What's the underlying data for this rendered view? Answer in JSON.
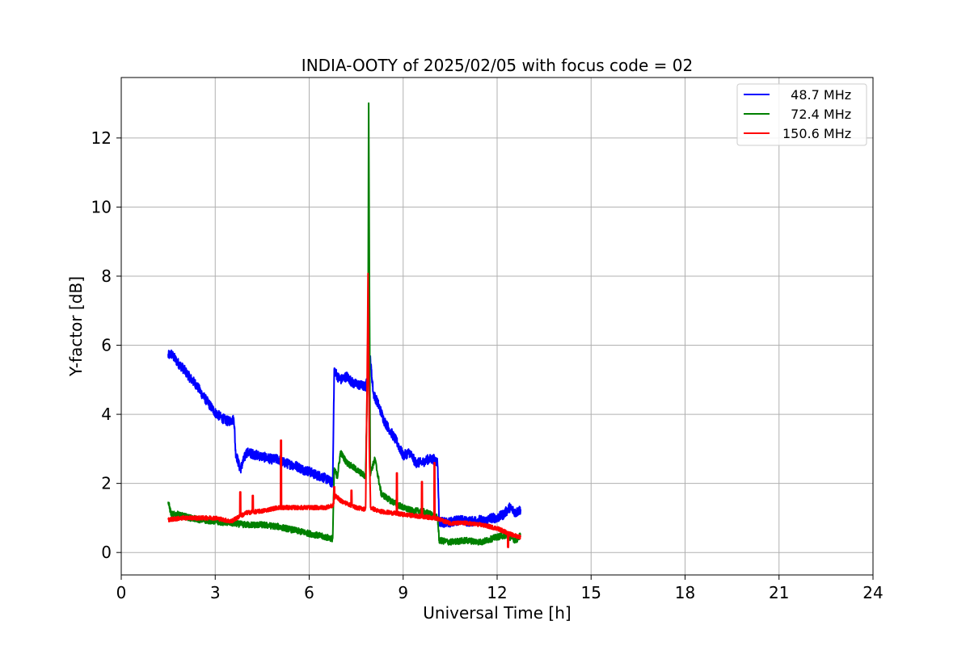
{
  "chart_data": {
    "type": "line",
    "title": "INDIA-OOTY of 2025/02/05 with focus code = 02",
    "xlabel": "Universal Time [h]",
    "ylabel": "Y-factor [dB]",
    "xlim": [
      0,
      24
    ],
    "ylim": [
      -0.65,
      13.75
    ],
    "xticks": [
      0,
      3,
      6,
      9,
      12,
      15,
      18,
      21,
      24
    ],
    "yticks": [
      0,
      2,
      4,
      6,
      8,
      10,
      12
    ],
    "grid": true,
    "legend_position": "top-right",
    "series": [
      {
        "name": "  48.7 MHz",
        "color": "#0000ff",
        "noise": 0.14,
        "points": [
          [
            1.5,
            5.7
          ],
          [
            1.6,
            5.75
          ],
          [
            1.8,
            5.5
          ],
          [
            2.0,
            5.3
          ],
          [
            2.2,
            5.05
          ],
          [
            2.4,
            4.85
          ],
          [
            2.6,
            4.55
          ],
          [
            2.8,
            4.3
          ],
          [
            3.0,
            4.05
          ],
          [
            3.2,
            3.9
          ],
          [
            3.4,
            3.8
          ],
          [
            3.6,
            3.85
          ],
          [
            3.62,
            3.5
          ],
          [
            3.65,
            2.9
          ],
          [
            3.8,
            2.4
          ],
          [
            4.0,
            2.9
          ],
          [
            4.2,
            2.85
          ],
          [
            4.4,
            2.8
          ],
          [
            4.6,
            2.75
          ],
          [
            4.8,
            2.7
          ],
          [
            5.0,
            2.7
          ],
          [
            5.2,
            2.6
          ],
          [
            5.4,
            2.55
          ],
          [
            5.6,
            2.5
          ],
          [
            5.8,
            2.4
          ],
          [
            6.0,
            2.35
          ],
          [
            6.2,
            2.25
          ],
          [
            6.4,
            2.2
          ],
          [
            6.6,
            2.1
          ],
          [
            6.75,
            2.0
          ],
          [
            6.8,
            5.3
          ],
          [
            6.9,
            5.1
          ],
          [
            7.0,
            5.0
          ],
          [
            7.2,
            5.1
          ],
          [
            7.4,
            4.9
          ],
          [
            7.6,
            4.85
          ],
          [
            7.8,
            4.8
          ],
          [
            7.85,
            5.0
          ],
          [
            7.95,
            5.6
          ],
          [
            8.05,
            4.6
          ],
          [
            8.2,
            4.3
          ],
          [
            8.4,
            3.8
          ],
          [
            8.6,
            3.5
          ],
          [
            8.8,
            3.2
          ],
          [
            9.0,
            2.8
          ],
          [
            9.2,
            2.9
          ],
          [
            9.4,
            2.6
          ],
          [
            9.6,
            2.6
          ],
          [
            9.8,
            2.7
          ],
          [
            10.0,
            2.7
          ],
          [
            10.1,
            2.6
          ],
          [
            10.15,
            0.9
          ],
          [
            10.4,
            0.85
          ],
          [
            10.6,
            0.9
          ],
          [
            10.8,
            0.95
          ],
          [
            11.0,
            0.9
          ],
          [
            11.2,
            0.9
          ],
          [
            11.4,
            0.95
          ],
          [
            11.6,
            0.9
          ],
          [
            11.8,
            1.0
          ],
          [
            12.0,
            1.0
          ],
          [
            12.2,
            1.1
          ],
          [
            12.4,
            1.3
          ],
          [
            12.6,
            1.15
          ],
          [
            12.75,
            1.25
          ]
        ]
      },
      {
        "name": "  72.4 MHz",
        "color": "#008000",
        "noise": 0.09,
        "points": [
          [
            1.5,
            1.45
          ],
          [
            1.6,
            1.1
          ],
          [
            1.8,
            1.1
          ],
          [
            2.0,
            1.05
          ],
          [
            2.2,
            1.0
          ],
          [
            2.5,
            0.95
          ],
          [
            3.0,
            0.9
          ],
          [
            3.5,
            0.85
          ],
          [
            4.0,
            0.8
          ],
          [
            4.5,
            0.8
          ],
          [
            5.0,
            0.75
          ],
          [
            5.5,
            0.65
          ],
          [
            6.0,
            0.55
          ],
          [
            6.5,
            0.45
          ],
          [
            6.75,
            0.4
          ],
          [
            6.8,
            2.4
          ],
          [
            6.9,
            2.2
          ],
          [
            7.0,
            2.9
          ],
          [
            7.2,
            2.6
          ],
          [
            7.5,
            2.4
          ],
          [
            7.8,
            2.2
          ],
          [
            7.88,
            6.0
          ],
          [
            7.9,
            13.0
          ],
          [
            7.92,
            8.5
          ],
          [
            7.95,
            2.3
          ],
          [
            8.1,
            2.7
          ],
          [
            8.3,
            1.7
          ],
          [
            8.6,
            1.5
          ],
          [
            9.0,
            1.3
          ],
          [
            9.3,
            1.2
          ],
          [
            9.6,
            1.2
          ],
          [
            9.9,
            1.1
          ],
          [
            10.1,
            1.0
          ],
          [
            10.15,
            0.35
          ],
          [
            10.5,
            0.3
          ],
          [
            11.0,
            0.35
          ],
          [
            11.5,
            0.3
          ],
          [
            12.0,
            0.45
          ],
          [
            12.3,
            0.5
          ],
          [
            12.6,
            0.35
          ],
          [
            12.75,
            0.5
          ]
        ]
      },
      {
        "name": "150.6 MHz",
        "color": "#ff0000",
        "noise": 0.06,
        "points": [
          [
            1.5,
            0.95
          ],
          [
            2.0,
            1.0
          ],
          [
            2.5,
            1.0
          ],
          [
            3.0,
            1.0
          ],
          [
            3.5,
            0.9
          ],
          [
            3.8,
            1.05
          ],
          [
            4.0,
            1.15
          ],
          [
            4.5,
            1.2
          ],
          [
            5.0,
            1.3
          ],
          [
            5.5,
            1.3
          ],
          [
            6.0,
            1.3
          ],
          [
            6.5,
            1.3
          ],
          [
            6.75,
            1.35
          ],
          [
            6.85,
            1.65
          ],
          [
            7.0,
            1.5
          ],
          [
            7.5,
            1.3
          ],
          [
            7.8,
            1.25
          ],
          [
            7.85,
            5.0
          ],
          [
            7.88,
            8.1
          ],
          [
            7.92,
            3.0
          ],
          [
            7.96,
            1.3
          ],
          [
            8.2,
            1.2
          ],
          [
            8.6,
            1.15
          ],
          [
            9.0,
            1.1
          ],
          [
            9.5,
            1.05
          ],
          [
            10.0,
            1.0
          ],
          [
            10.5,
            0.85
          ],
          [
            11.0,
            0.85
          ],
          [
            11.5,
            0.8
          ],
          [
            12.0,
            0.7
          ],
          [
            12.5,
            0.5
          ],
          [
            12.75,
            0.45
          ]
        ],
        "spikes": [
          [
            3.8,
            1.75
          ],
          [
            4.2,
            1.65
          ],
          [
            5.1,
            3.25
          ],
          [
            6.8,
            1.9
          ],
          [
            7.35,
            1.8
          ],
          [
            8.8,
            2.3
          ],
          [
            9.6,
            2.05
          ],
          [
            10.0,
            2.6
          ],
          [
            12.35,
            0.15
          ]
        ]
      }
    ]
  }
}
